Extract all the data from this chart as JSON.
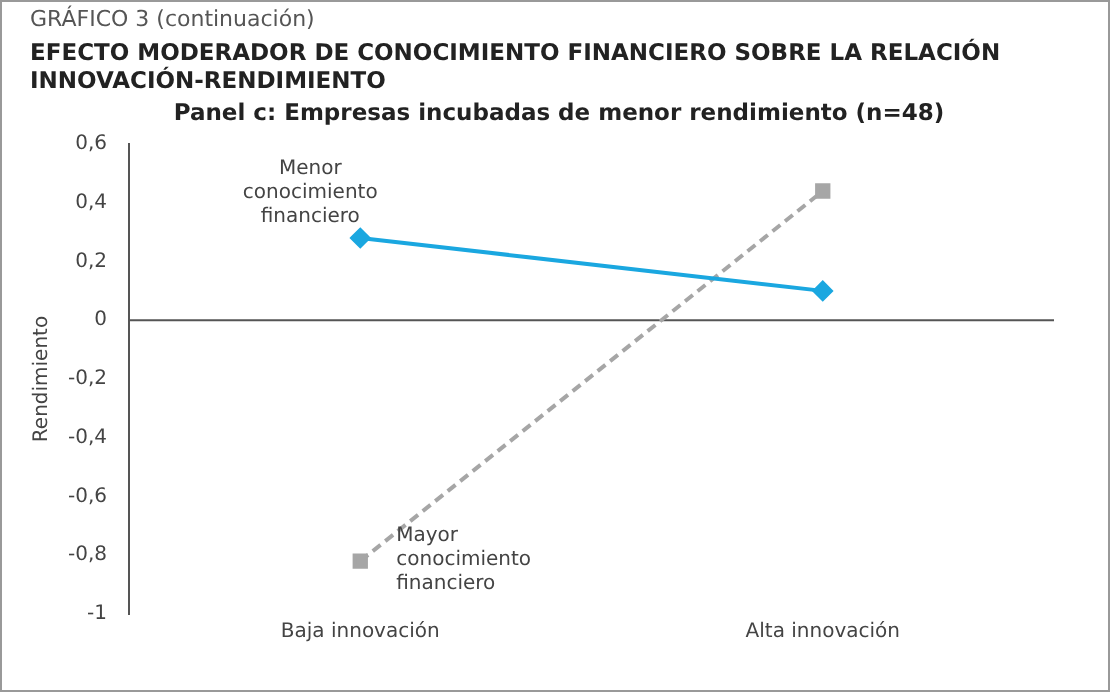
{
  "chart_data": {
    "type": "line",
    "title": "EFECTO MODERADOR DE CONOCIMIENTO FINANCIERO SOBRE LA RELACIÓN INNOVACIÓN-RENDIMIENTO",
    "subtitle": "Panel c: Empresas incubadas de menor rendimiento (n=48)",
    "annotations": [
      "GRÁFICO 3 (continuación)"
    ],
    "ylabel": "Rendimiento",
    "categories": [
      "Baja innovación",
      "Alta innovación"
    ],
    "series": [
      {
        "name": "Menor conocimiento financiero",
        "color": "#1aa7e0",
        "values": [
          0.28,
          0.1
        ],
        "marker": "diamond",
        "line_style": "solid"
      },
      {
        "name": "Mayor conocimiento financiero",
        "color": "#a6a6a6",
        "values": [
          -0.82,
          0.44
        ],
        "marker": "square",
        "line_style": "dashed"
      }
    ],
    "ylim": [
      -1,
      0.6
    ],
    "yticks": [
      {
        "value": -1,
        "label": "-1"
      },
      {
        "value": -0.8,
        "label": "-0,8"
      },
      {
        "value": -0.6,
        "label": "-0,6"
      },
      {
        "value": -0.4,
        "label": "-0,4"
      },
      {
        "value": -0.2,
        "label": "-0,2"
      },
      {
        "value": 0,
        "label": "0"
      },
      {
        "value": 0.2,
        "label": "0,2"
      },
      {
        "value": 0.4,
        "label": "0,4"
      },
      {
        "value": 0.6,
        "label": "0,6"
      }
    ],
    "ref_lines": [
      {
        "axis": "y",
        "value": 0,
        "color": "#555555"
      }
    ],
    "legend": false,
    "grid": false
  }
}
